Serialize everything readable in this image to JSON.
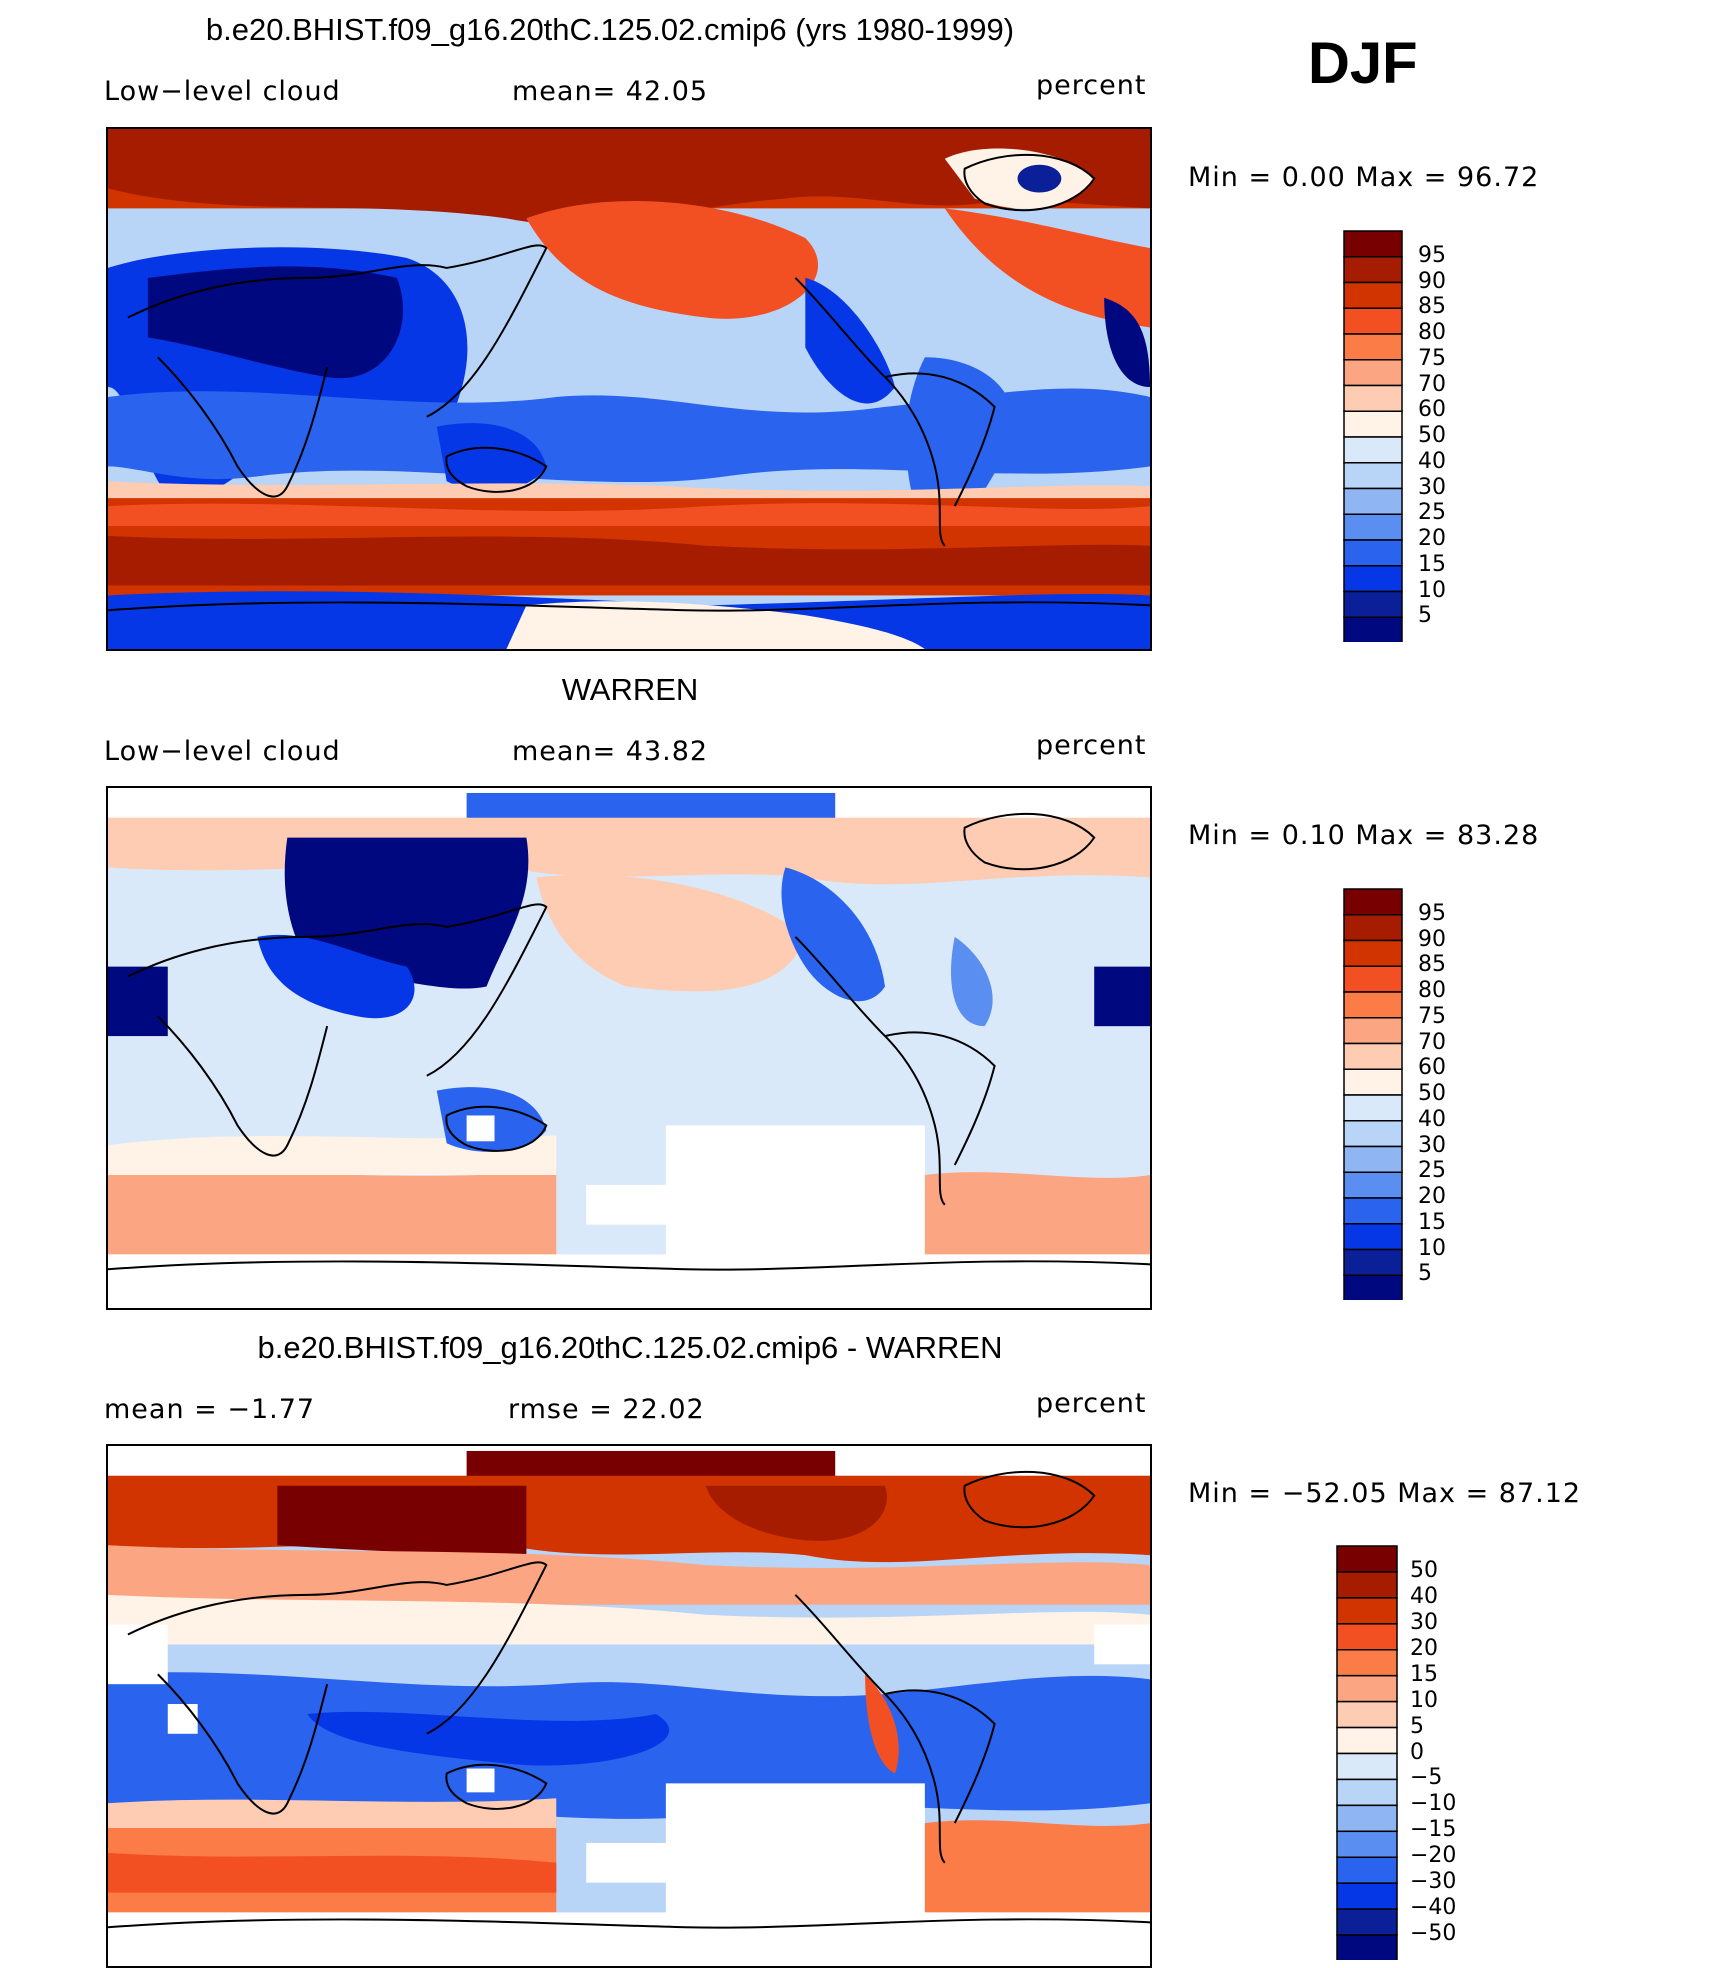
{
  "season": "DJF",
  "panels": [
    {
      "title": "b.e20.BHIST.f09_g16.20thC.125.02.cmip6 (yrs 1980-1999)",
      "left": "Low−level cloud",
      "middle": "mean=   42.05",
      "right": "percent",
      "minmax": "Min =     0.00  Max =    96.72",
      "colorbar_levels": [
        "95",
        "90",
        "85",
        "80",
        "75",
        "70",
        "60",
        "50",
        "40",
        "30",
        "25",
        "20",
        "15",
        "10",
        "5"
      ]
    },
    {
      "title": "WARREN",
      "left": "Low−level cloud",
      "middle": "mean=   43.82",
      "right": "percent",
      "minmax": "Min =     0.10  Max =    83.28",
      "colorbar_levels": [
        "95",
        "90",
        "85",
        "80",
        "75",
        "70",
        "60",
        "50",
        "40",
        "30",
        "25",
        "20",
        "15",
        "10",
        "5"
      ]
    },
    {
      "title": "b.e20.BHIST.f09_g16.20thC.125.02.cmip6 - WARREN",
      "left": "mean =   −1.77",
      "middle": "rmse =    22.02",
      "right": "percent",
      "minmax": "Min = −52.05  Max =    87.12",
      "colorbar_levels": [
        "50",
        "40",
        "30",
        "20",
        "15",
        "10",
        "5",
        "0",
        "−5",
        "−10",
        "−15",
        "−20",
        "−30",
        "−40",
        "−50"
      ]
    }
  ],
  "colors": {
    "scale": [
      "#780000",
      "#a51c00",
      "#d23400",
      "#f25022",
      "#fc7c48",
      "#fca582",
      "#fdccb2",
      "#fff2e6",
      "#dae9fa",
      "#b8d4f7",
      "#8fb6f3",
      "#5a8ef0",
      "#2a63ee",
      "#0637e6",
      "#0b1f99",
      "#000880"
    ],
    "diff_scale": [
      "#780000",
      "#a51c00",
      "#d23400",
      "#f25022",
      "#fc7c48",
      "#fca582",
      "#fdccb2",
      "#fff2e6",
      "#dae9fa",
      "#b8d4f7",
      "#8fb6f3",
      "#5a8ef0",
      "#2a63ee",
      "#0637e6",
      "#0b1f99",
      "#000880"
    ]
  }
}
